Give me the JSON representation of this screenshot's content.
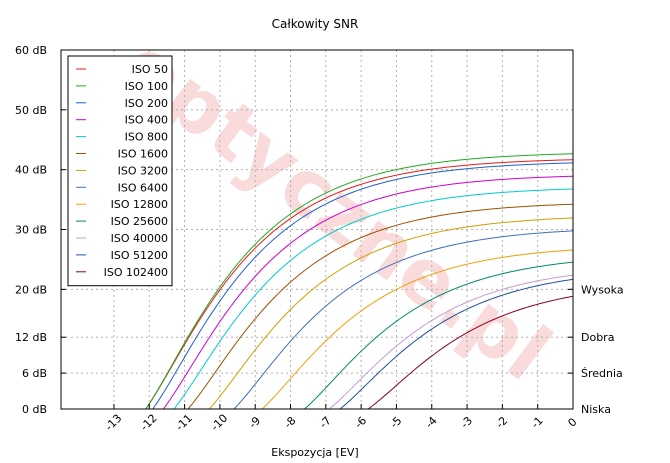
{
  "chart_data": {
    "type": "line",
    "title": "Całkowity SNR",
    "xlabel": "Ekspozycja [EV]",
    "ylabel": "",
    "xlim": [
      -14.5,
      0
    ],
    "ylim": [
      0,
      60
    ],
    "x_ticks": [
      -13,
      -12,
      -11,
      -10,
      -9,
      -8,
      -7,
      -6,
      -5,
      -4,
      -3,
      -2,
      -1,
      0
    ],
    "y_ticks": [
      {
        "value": 0,
        "label": "0 dB"
      },
      {
        "value": 6,
        "label": "6 dB"
      },
      {
        "value": 12,
        "label": "12 dB"
      },
      {
        "value": 20,
        "label": "20 dB"
      },
      {
        "value": 30,
        "label": "30 dB"
      },
      {
        "value": 40,
        "label": "40 dB"
      },
      {
        "value": 50,
        "label": "50 dB"
      },
      {
        "value": 60,
        "label": "60 dB"
      }
    ],
    "quality_levels": [
      {
        "value": 20,
        "label": "Wysoka"
      },
      {
        "value": 12,
        "label": "Dobra"
      },
      {
        "value": 6,
        "label": "Średnia"
      },
      {
        "value": 0,
        "label": "Niska"
      }
    ],
    "grid": true,
    "legend_position": "top-left",
    "watermark": "optyczne.pl",
    "series": [
      {
        "name": "ISO 50",
        "color": "#e41a1c",
        "x0": -12.1,
        "ymax": 42.0
      },
      {
        "name": "ISO 100",
        "color": "#22aa22",
        "x0": -12.1,
        "ymax": 43.0
      },
      {
        "name": "ISO 200",
        "color": "#1f5fd0",
        "x0": -11.9,
        "ymax": 41.5
      },
      {
        "name": "ISO 400",
        "color": "#cc00cc",
        "x0": -11.6,
        "ymax": 39.3
      },
      {
        "name": "ISO 800",
        "color": "#00cccc",
        "x0": -11.3,
        "ymax": 37.2
      },
      {
        "name": "ISO 1600",
        "color": "#a05000",
        "x0": -10.9,
        "ymax": 34.7
      },
      {
        "name": "ISO 3200",
        "color": "#cca000",
        "x0": -10.3,
        "ymax": 32.5
      },
      {
        "name": "ISO 6400",
        "color": "#3b6fc0",
        "x0": -9.6,
        "ymax": 30.5
      },
      {
        "name": "ISO 12800",
        "color": "#f0a000",
        "x0": -8.8,
        "ymax": 27.5
      },
      {
        "name": "ISO 25600",
        "color": "#008a6a",
        "x0": -7.6,
        "ymax": 26.0
      },
      {
        "name": "ISO 40000",
        "color": "#c89ad8",
        "x0": -6.9,
        "ymax": 24.2
      },
      {
        "name": "ISO 51200",
        "color": "#204fa0",
        "x0": -6.6,
        "ymax": 23.7
      },
      {
        "name": "ISO 102400",
        "color": "#880022",
        "x0": -5.8,
        "ymax": 21.4
      }
    ]
  }
}
